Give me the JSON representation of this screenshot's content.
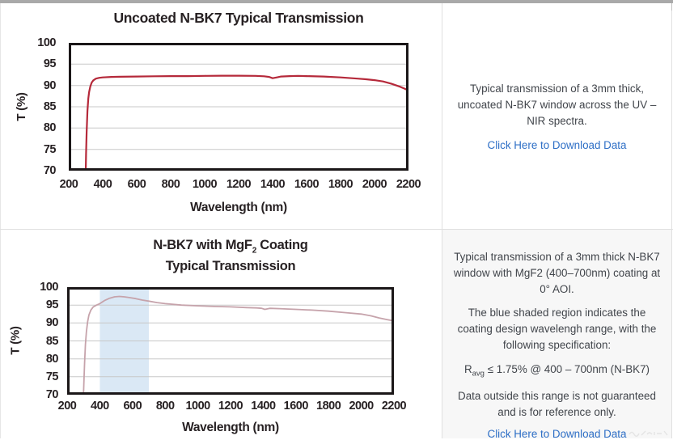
{
  "page": {
    "bg": "#ffffff",
    "top_bar_color": "#a9a9a9",
    "divider_color": "#e0e0e0",
    "panel2_bg": "#f7f7f7",
    "link_color": "#2e6fc6"
  },
  "chart_data": [
    {
      "type": "line",
      "title": "Uncoated N-BK7 Typical Transmission",
      "xlabel": "Wavelength (nm)",
      "ylabel": "T (%)",
      "xlim": [
        200,
        2200
      ],
      "ylim": [
        70,
        100
      ],
      "xticks": [
        200,
        400,
        600,
        800,
        1000,
        1200,
        1400,
        1600,
        1800,
        2000,
        2200
      ],
      "yticks": [
        70,
        75,
        80,
        85,
        90,
        95,
        100
      ],
      "grid": "horizontal gridlines on",
      "legend": "none",
      "grid_color": "#c8c8c8",
      "frame_color": "#1b1718",
      "line_color": "#b5293a",
      "line_width": 2.2,
      "series": [
        {
          "name": "Uncoated N-BK7 transmission",
          "points": [
            [
              300,
              70
            ],
            [
              302,
              74
            ],
            [
              305,
              79
            ],
            [
              310,
              84
            ],
            [
              315,
              87
            ],
            [
              320,
              88.5
            ],
            [
              327,
              89.8
            ],
            [
              335,
              90.7
            ],
            [
              345,
              91.2
            ],
            [
              360,
              91.6
            ],
            [
              380,
              91.8
            ],
            [
              400,
              91.9
            ],
            [
              450,
              92.0
            ],
            [
              500,
              92.05
            ],
            [
              600,
              92.1
            ],
            [
              700,
              92.15
            ],
            [
              800,
              92.2
            ],
            [
              900,
              92.2
            ],
            [
              1000,
              92.25
            ],
            [
              1100,
              92.3
            ],
            [
              1200,
              92.3
            ],
            [
              1300,
              92.25
            ],
            [
              1350,
              92.15
            ],
            [
              1380,
              92.0
            ],
            [
              1400,
              91.7
            ],
            [
              1425,
              91.9
            ],
            [
              1450,
              92.1
            ],
            [
              1500,
              92.2
            ],
            [
              1550,
              92.25
            ],
            [
              1600,
              92.2
            ],
            [
              1700,
              92.1
            ],
            [
              1800,
              91.9
            ],
            [
              1900,
              91.6
            ],
            [
              1950,
              91.45
            ],
            [
              2000,
              91.25
            ],
            [
              2050,
              90.95
            ],
            [
              2100,
              90.4
            ],
            [
              2150,
              89.7
            ],
            [
              2180,
              89.2
            ],
            [
              2200,
              88.8
            ]
          ]
        }
      ]
    },
    {
      "type": "line",
      "title": {
        "pre": "N-BK7 with MgF",
        "sub": "2",
        "post": " Coating",
        "line2": "Typical Transmission"
      },
      "xlabel": "Wavelength (nm)",
      "ylabel": "T (%)",
      "xlim": [
        200,
        2200
      ],
      "ylim": [
        70,
        100
      ],
      "xticks": [
        200,
        400,
        600,
        800,
        1000,
        1200,
        1400,
        1600,
        1800,
        2000,
        2200
      ],
      "yticks": [
        70,
        75,
        80,
        85,
        90,
        95,
        100
      ],
      "grid": "horizontal gridlines on",
      "legend": "none",
      "grid_color": "#c8c8c8",
      "frame_color": "#1b1718",
      "line_color": "#c6a3ab",
      "line_width": 1.8,
      "shaded_region": {
        "x0": 400,
        "x1": 700,
        "color": "#dae8f5",
        "label": "coating design wavelength range 400-700nm"
      },
      "series": [
        {
          "name": "N-BK7 with MgF2 coating transmission",
          "points": [
            [
              300,
              70
            ],
            [
              303,
              74
            ],
            [
              307,
              79
            ],
            [
              312,
              84
            ],
            [
              318,
              87.5
            ],
            [
              325,
              90.3
            ],
            [
              333,
              92.2
            ],
            [
              345,
              93.6
            ],
            [
              360,
              94.5
            ],
            [
              380,
              95.0
            ],
            [
              400,
              95.4
            ],
            [
              430,
              96.3
            ],
            [
              460,
              96.9
            ],
            [
              490,
              97.3
            ],
            [
              520,
              97.4
            ],
            [
              550,
              97.3
            ],
            [
              580,
              97.1
            ],
            [
              620,
              96.8
            ],
            [
              660,
              96.4
            ],
            [
              700,
              96.1
            ],
            [
              750,
              95.7
            ],
            [
              800,
              95.4
            ],
            [
              900,
              95.0
            ],
            [
              1000,
              94.8
            ],
            [
              1100,
              94.6
            ],
            [
              1200,
              94.5
            ],
            [
              1300,
              94.3
            ],
            [
              1360,
              94.2
            ],
            [
              1390,
              94.1
            ],
            [
              1410,
              93.8
            ],
            [
              1440,
              94.1
            ],
            [
              1500,
              94.0
            ],
            [
              1600,
              93.8
            ],
            [
              1700,
              93.6
            ],
            [
              1800,
              93.3
            ],
            [
              1900,
              92.9
            ],
            [
              2000,
              92.5
            ],
            [
              2060,
              92.0
            ],
            [
              2110,
              91.4
            ],
            [
              2160,
              90.9
            ],
            [
              2200,
              90.6
            ]
          ]
        }
      ]
    }
  ],
  "panels": [
    {
      "text": "Typical transmission of a 3mm thick, uncoated N-BK7 window across the UV – NIR spectra.",
      "link": "Click Here to Download Data"
    },
    {
      "p1": "Typical transmission of a 3mm thick N-BK7 window with MgF2 (400–700nm) coating at 0° AOI.",
      "p2": "The blue shaded region indicates the coating design wavelengh range, with the following specification:",
      "spec_pre": "R",
      "spec_sub": "avg",
      "spec_post": " ≤ 1.75% @ 400 – 700nm (N-BK7)",
      "p3": "Data outside this range is not guaranteed and is for reference only.",
      "link": "Click Here to Download Data"
    }
  ]
}
